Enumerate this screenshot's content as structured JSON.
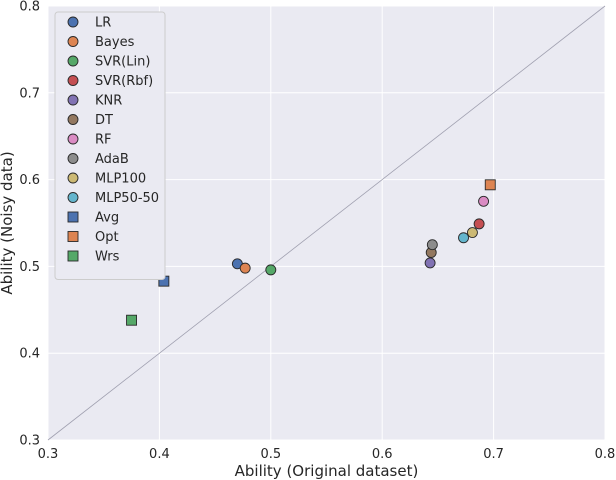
{
  "chart_data": {
    "type": "scatter",
    "title": "",
    "xlabel": "Ability (Original dataset)",
    "ylabel": "Ability (Noisy data)",
    "xlim": [
      0.3,
      0.8
    ],
    "ylim": [
      0.3,
      0.8
    ],
    "xticks": [
      "0.3",
      "0.4",
      "0.5",
      "0.6",
      "0.7",
      "0.8"
    ],
    "yticks": [
      "0.3",
      "0.4",
      "0.5",
      "0.6",
      "0.7",
      "0.8"
    ],
    "grid": true,
    "diagonal_reference_line": true,
    "legend_placement": "top-left",
    "series": [
      {
        "name": "LR",
        "marker": "circle",
        "color": "#4c72b0",
        "x": 0.47,
        "y": 0.503
      },
      {
        "name": "Bayes",
        "marker": "circle",
        "color": "#dd8452",
        "x": 0.477,
        "y": 0.498
      },
      {
        "name": " SVR(Lin)",
        "marker": "circle",
        "color": "#55a868",
        "x": 0.5,
        "y": 0.496
      },
      {
        "name": " SVR(Rbf)",
        "marker": "circle",
        "color": "#c44e52",
        "x": 0.687,
        "y": 0.549
      },
      {
        "name": "KNR",
        "marker": "circle",
        "color": "#8172b3",
        "x": 0.643,
        "y": 0.504
      },
      {
        "name": "DT",
        "marker": "circle",
        "color": "#937860",
        "x": 0.644,
        "y": 0.516
      },
      {
        "name": "RF",
        "marker": "circle",
        "color": "#da8bc3",
        "x": 0.691,
        "y": 0.575
      },
      {
        "name": "AdaB",
        "marker": "circle",
        "color": "#8c8c8c",
        "x": 0.645,
        "y": 0.525
      },
      {
        "name": "MLP100",
        "marker": "circle",
        "color": "#ccb974",
        "x": 0.681,
        "y": 0.539
      },
      {
        "name": "MLP50-50",
        "marker": "circle",
        "color": "#64b5cd",
        "x": 0.673,
        "y": 0.533
      },
      {
        "name": "Avg",
        "marker": "square",
        "color": "#4c72b0",
        "x": 0.404,
        "y": 0.483
      },
      {
        "name": "Opt",
        "marker": "square",
        "color": "#dd8452",
        "x": 0.697,
        "y": 0.594
      },
      {
        "name": "Wrs",
        "marker": "square",
        "color": "#55a868",
        "x": 0.375,
        "y": 0.438
      }
    ]
  }
}
